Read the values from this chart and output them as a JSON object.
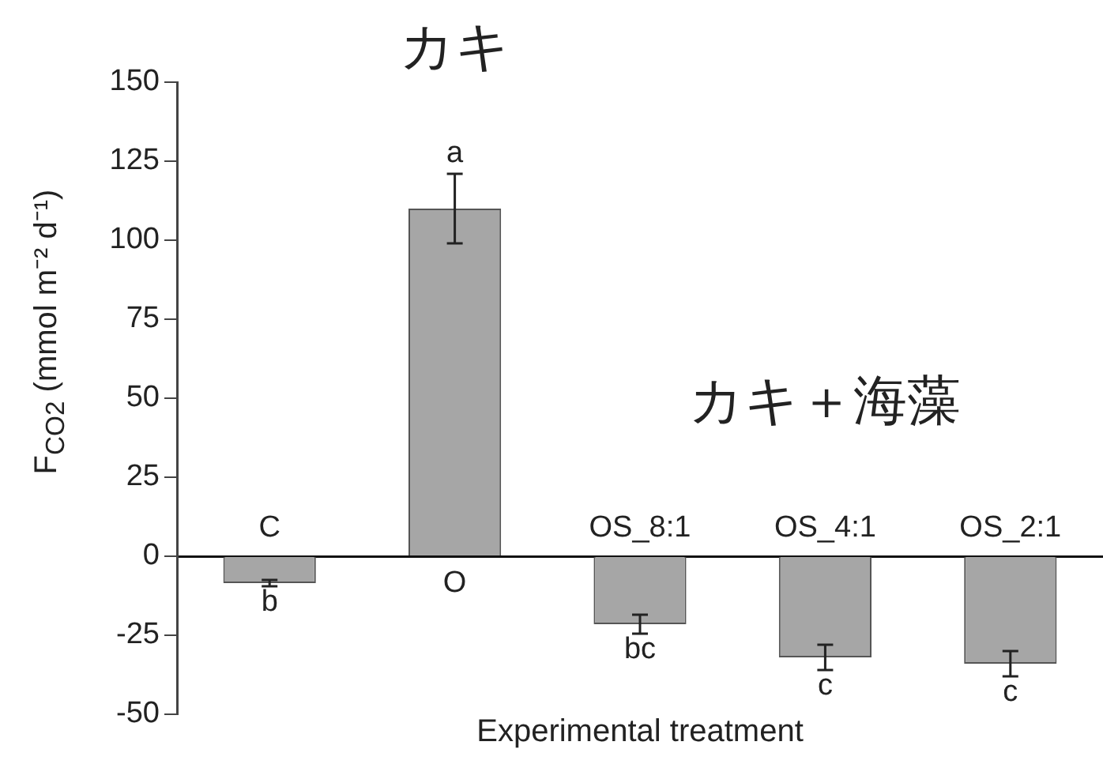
{
  "chart_data": {
    "type": "bar",
    "xlabel": "Experimental treatment",
    "ylabel": "F$_{CO2}$ (mmol m⁻² d⁻¹)",
    "categories": [
      "C",
      "O",
      "OS_8:1",
      "OS_4:1",
      "OS_2:1"
    ],
    "values": [
      -8.5,
      110,
      -21.5,
      -32,
      -34
    ],
    "errors": [
      1,
      11,
      3,
      4,
      4
    ],
    "color": "#a6a6a6",
    "ylim": [
      -50,
      150
    ],
    "yticks": [
      -50,
      -25,
      0,
      25,
      50,
      75,
      100,
      125,
      150
    ],
    "grid": false,
    "legend": false,
    "annotations": [
      "カキ",
      "カキ＋海藻",
      "b",
      "a",
      "bc",
      "c",
      "c"
    ]
  }
}
